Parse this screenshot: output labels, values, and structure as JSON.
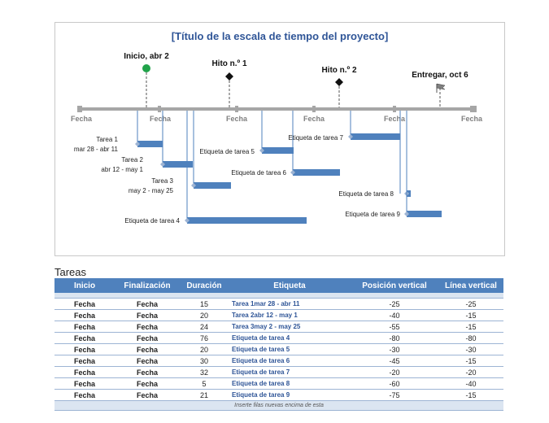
{
  "chart": {
    "title": "[Título de la escala de tiempo del proyecto]",
    "date_label": "Fecha",
    "milestones": [
      {
        "label": "Inicio, abr 2",
        "marker": "green-circle"
      },
      {
        "label": "Hito n.º 1",
        "marker": "black-diamond"
      },
      {
        "label": "Hito n.º 2",
        "marker": "black-diamond"
      },
      {
        "label": "Entregar, oct 6",
        "marker": "flag"
      }
    ],
    "task_labels": [
      {
        "line1": "Tarea 1",
        "line2": "mar 28 - abr 11"
      },
      {
        "line1": "Tarea 2",
        "line2": "abr 12 - may 1"
      },
      {
        "line1": "Tarea 3",
        "line2": "may 2 - may 25"
      },
      {
        "line1": "Etiqueta de tarea 4",
        "line2": ""
      },
      {
        "line1": "Etiqueta de tarea 5",
        "line2": ""
      },
      {
        "line1": "Etiqueta de tarea 6",
        "line2": ""
      },
      {
        "line1": "Etiqueta de tarea 7",
        "line2": ""
      },
      {
        "line1": "Etiqueta de tarea 8",
        "line2": ""
      },
      {
        "line1": "Etiqueta de tarea 9",
        "line2": ""
      }
    ],
    "colors": {
      "bar": "#4f81bd",
      "axis": "#a6a6a6",
      "title": "#2f5597",
      "milestone_green": "#21a34a"
    }
  },
  "table": {
    "title": "Tareas",
    "headers": [
      "Inicio",
      "Finalización",
      "Duración",
      "Etiqueta",
      "Posición vertical",
      "Línea vertical"
    ],
    "rows": [
      [
        "Fecha",
        "Fecha",
        "15",
        "Tarea 1mar 28 - abr 11",
        "-25",
        "-25"
      ],
      [
        "Fecha",
        "Fecha",
        "20",
        "Tarea 2abr 12 - may 1",
        "-40",
        "-15"
      ],
      [
        "Fecha",
        "Fecha",
        "24",
        "Tarea 3may 2 - may 25",
        "-55",
        "-15"
      ],
      [
        "Fecha",
        "Fecha",
        "76",
        "Etiqueta de tarea 4",
        "-80",
        "-80"
      ],
      [
        "Fecha",
        "Fecha",
        "20",
        "Etiqueta de tarea 5",
        "-30",
        "-30"
      ],
      [
        "Fecha",
        "Fecha",
        "30",
        "Etiqueta de tarea 6",
        "-45",
        "-15"
      ],
      [
        "Fecha",
        "Fecha",
        "32",
        "Etiqueta de tarea 7",
        "-20",
        "-20"
      ],
      [
        "Fecha",
        "Fecha",
        "5",
        "Etiqueta de tarea 8",
        "-60",
        "-40"
      ],
      [
        "Fecha",
        "Fecha",
        "21",
        "Etiqueta de tarea 9",
        "-75",
        "-15"
      ]
    ],
    "footer": "Inserte filas nuevas encima de esta"
  }
}
